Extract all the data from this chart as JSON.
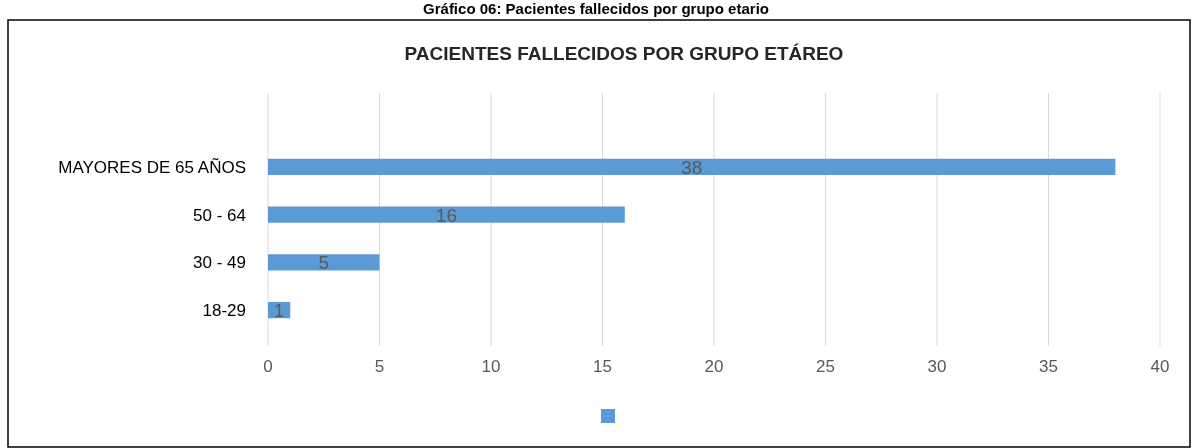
{
  "chart_data": {
    "type": "bar",
    "orientation": "horizontal",
    "title": "PACIENTES FALLECIDOS POR GRUPO ETÁREO",
    "subtitle": "Gráfico 06: Pacientes fallecidos por grupo etario",
    "categories": [
      "MAYORES DE 65 AÑOS",
      "50 - 64",
      "30 - 49",
      "18-29"
    ],
    "series": [
      {
        "color": "#5b9bd5",
        "values": [
          38,
          16,
          5,
          1
        ]
      }
    ],
    "xlim": [
      0,
      40
    ],
    "xticks": [
      0,
      5,
      10,
      15,
      20,
      25,
      30,
      35,
      40
    ],
    "grid": "x",
    "data_labels": true
  }
}
